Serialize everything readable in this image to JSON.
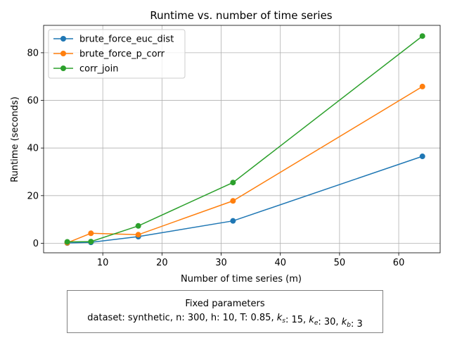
{
  "chart_data": {
    "type": "line",
    "title": "Runtime vs. number of time series",
    "xlabel": "Number of time series (m)",
    "ylabel": "Runtime (seconds)",
    "xlim": [
      0.0,
      67.0
    ],
    "ylim": [
      -4.0,
      91.5
    ],
    "xticks": [
      10,
      20,
      30,
      40,
      50,
      60
    ],
    "yticks": [
      0,
      20,
      40,
      60,
      80
    ],
    "grid": true,
    "legend_position": "top-left",
    "x": [
      4,
      8,
      16,
      32,
      64
    ],
    "series": [
      {
        "name": "brute_force_euc_dist",
        "color": "#1f77b4",
        "values": [
          0.1,
          0.4,
          2.8,
          9.4,
          36.5
        ]
      },
      {
        "name": "brute_force_p_corr",
        "color": "#ff7f0e",
        "values": [
          0.2,
          4.2,
          3.6,
          17.8,
          65.8
        ]
      },
      {
        "name": "corr_join",
        "color": "#2ca02c",
        "values": [
          0.6,
          0.7,
          7.3,
          25.5,
          87.0
        ]
      }
    ]
  },
  "note": {
    "title": "Fixed parameters",
    "line": [
      {
        "t": "dataset: synthetic, n: 300, h: 10, T: 0.85, "
      },
      {
        "t": "k",
        "italic": true
      },
      {
        "t": "s",
        "sub": true
      },
      {
        "t": ": 15, "
      },
      {
        "t": "k",
        "italic": true
      },
      {
        "t": "e",
        "sub": true
      },
      {
        "t": ": 30, "
      },
      {
        "t": "k",
        "italic": true
      },
      {
        "t": "b",
        "sub": true
      },
      {
        "t": ": 3"
      }
    ]
  }
}
